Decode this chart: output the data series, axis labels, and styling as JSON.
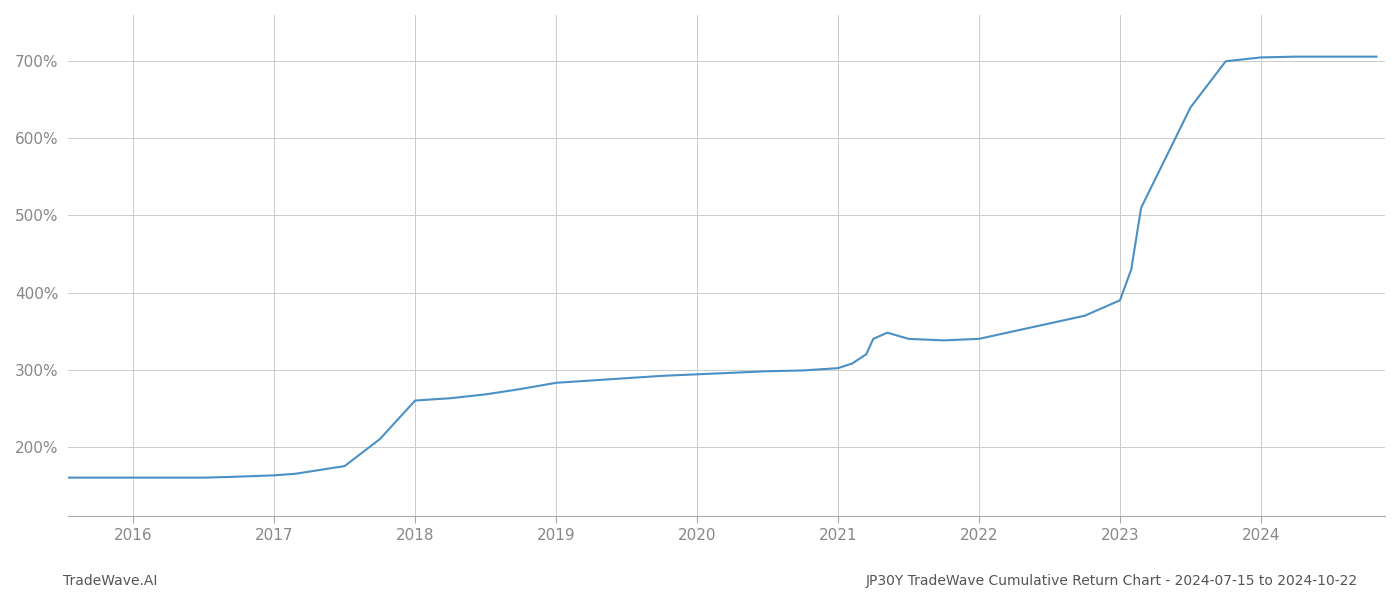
{
  "title": "JP30Y TradeWave Cumulative Return Chart - 2024-07-15 to 2024-10-22",
  "left_label": "TradeWave.AI",
  "line_color": "#4a90c4",
  "background_color": "#ffffff",
  "grid_color": "#cccccc",
  "x_years": [
    2015.54,
    2016.0,
    2016.3,
    2016.5,
    2016.7,
    2017.0,
    2017.15,
    2017.5,
    2017.75,
    2018.0,
    2018.25,
    2018.5,
    2018.75,
    2019.0,
    2019.25,
    2019.5,
    2019.75,
    2020.0,
    2020.25,
    2020.5,
    2020.75,
    2021.0,
    2021.1,
    2021.2,
    2021.25,
    2021.35,
    2021.5,
    2021.75,
    2022.0,
    2022.25,
    2022.5,
    2022.75,
    2023.0,
    2023.08,
    2023.15,
    2023.5,
    2023.75,
    2024.0,
    2024.25,
    2024.5,
    2024.75,
    2024.82
  ],
  "y_values": [
    160,
    160,
    160,
    160,
    161,
    163,
    165,
    175,
    210,
    260,
    263,
    268,
    275,
    283,
    286,
    289,
    292,
    294,
    296,
    298,
    299,
    302,
    308,
    320,
    340,
    348,
    340,
    338,
    340,
    350,
    360,
    370,
    390,
    430,
    510,
    640,
    700,
    705,
    706,
    706,
    706,
    706
  ],
  "yticks": [
    200,
    300,
    400,
    500,
    600,
    700
  ],
  "ytick_labels": [
    "200%",
    "300%",
    "400%",
    "500%",
    "600%",
    "700%"
  ],
  "xticks": [
    2016,
    2017,
    2018,
    2019,
    2020,
    2021,
    2022,
    2023,
    2024
  ],
  "xlim": [
    2015.54,
    2024.88
  ],
  "ylim": [
    110,
    760
  ],
  "line_width": 1.5,
  "title_fontsize": 10,
  "tick_fontsize": 11,
  "label_fontsize": 10
}
